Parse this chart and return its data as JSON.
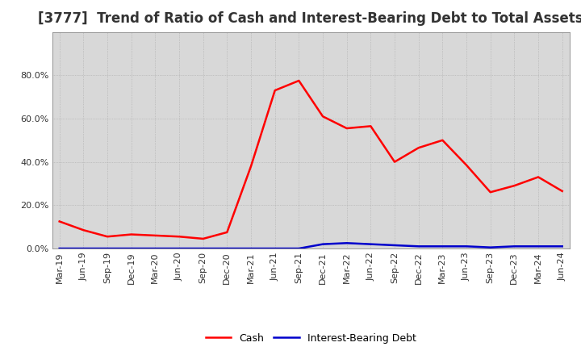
{
  "title": "[3777]  Trend of Ratio of Cash and Interest-Bearing Debt to Total Assets",
  "x_labels": [
    "Mar-19",
    "Jun-19",
    "Sep-19",
    "Dec-19",
    "Mar-20",
    "Jun-20",
    "Sep-20",
    "Dec-20",
    "Mar-21",
    "Jun-21",
    "Sep-21",
    "Dec-21",
    "Mar-22",
    "Jun-22",
    "Sep-22",
    "Dec-22",
    "Mar-23",
    "Jun-23",
    "Sep-23",
    "Dec-23",
    "Mar-24",
    "Jun-24"
  ],
  "cash": [
    0.125,
    0.085,
    0.055,
    0.065,
    0.06,
    0.055,
    0.045,
    0.075,
    0.38,
    0.73,
    0.775,
    0.61,
    0.555,
    0.565,
    0.4,
    0.465,
    0.5,
    0.385,
    0.26,
    0.29,
    0.33,
    0.265
  ],
  "ibd": [
    0.0,
    0.0,
    0.0,
    0.0,
    0.0,
    0.0,
    0.0,
    0.0,
    0.0,
    0.0,
    0.0,
    0.02,
    0.025,
    0.02,
    0.015,
    0.01,
    0.01,
    0.01,
    0.005,
    0.01,
    0.01,
    0.01
  ],
  "cash_color": "#FF0000",
  "ibd_color": "#0000CC",
  "ylim": [
    0.0,
    1.0
  ],
  "yticks": [
    0.0,
    0.2,
    0.4,
    0.6,
    0.8
  ],
  "ytick_labels": [
    "0.0%",
    "20.0%",
    "40.0%",
    "60.0%",
    "80.0%"
  ],
  "background_color": "#FFFFFF",
  "plot_bg_color": "#D8D8D8",
  "grid_color": "#AAAAAA",
  "legend_cash": "Cash",
  "legend_ibd": "Interest-Bearing Debt",
  "title_fontsize": 12,
  "axis_fontsize": 8,
  "line_width": 1.8
}
